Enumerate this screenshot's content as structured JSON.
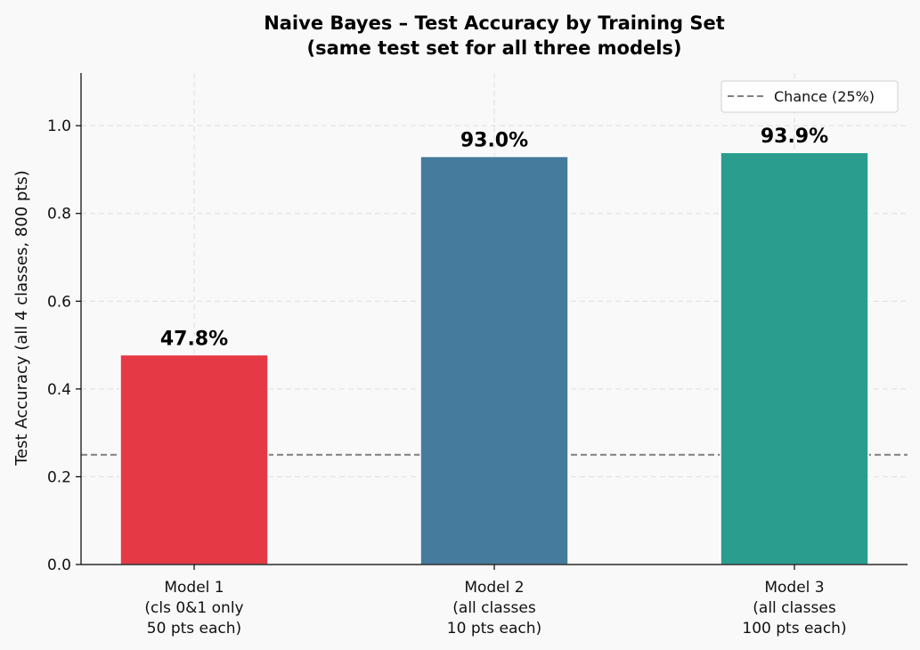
{
  "chart_data": {
    "type": "bar",
    "title_lines": [
      "Naive Bayes – Test Accuracy by Training Set",
      "(same test set for all three models)"
    ],
    "xlabel": "",
    "ylabel": "Test Accuracy (all 4 classes, 800 pts)",
    "categories": [
      [
        "Model 1",
        "(cls 0&1 only",
        "50 pts each)"
      ],
      [
        "Model 2",
        "(all classes",
        "10 pts each)"
      ],
      [
        "Model 3",
        "(all classes",
        "100 pts each)"
      ]
    ],
    "values": [
      0.478,
      0.93,
      0.939
    ],
    "data_labels": [
      "47.8%",
      "93.0%",
      "93.9%"
    ],
    "colors": [
      "#e63946",
      "#457b9d",
      "#2a9d8f"
    ],
    "ylim": [
      0,
      1.12
    ],
    "yticks": [
      0.0,
      0.2,
      0.4,
      0.6,
      0.8,
      1.0
    ],
    "ytick_labels": [
      "0.0",
      "0.2",
      "0.4",
      "0.6",
      "0.8",
      "1.0"
    ],
    "reference_line": {
      "value": 0.25,
      "label": "Chance (25%)",
      "color": "#808080",
      "style": "dashed"
    },
    "grid": true,
    "legend_position": "top-right"
  }
}
